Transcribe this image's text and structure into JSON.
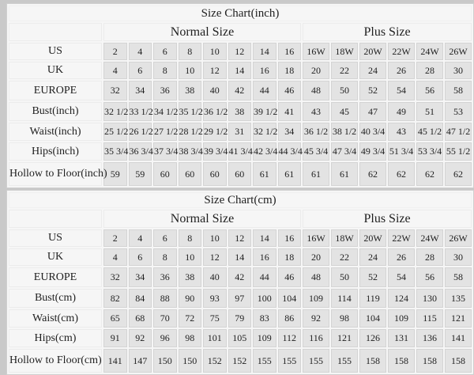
{
  "page": {
    "background": "#c9c9c9",
    "light_cell_color": "#f6f6f6",
    "data_cell_color": "#e3e3e3"
  },
  "tables": [
    {
      "title": "Size Chart(inch)",
      "normal_header": "Normal Size",
      "plus_header": "Plus Size",
      "rows": [
        {
          "label": "US",
          "values": [
            "2",
            "4",
            "6",
            "8",
            "10",
            "12",
            "14",
            "16",
            "16W",
            "18W",
            "20W",
            "22W",
            "24W",
            "26W"
          ]
        },
        {
          "label": "UK",
          "values": [
            "4",
            "6",
            "8",
            "10",
            "12",
            "14",
            "16",
            "18",
            "20",
            "22",
            "24",
            "26",
            "28",
            "30"
          ]
        },
        {
          "label": "EUROPE",
          "values": [
            "32",
            "34",
            "36",
            "38",
            "40",
            "42",
            "44",
            "46",
            "48",
            "50",
            "52",
            "54",
            "56",
            "58"
          ]
        },
        {
          "label": "Bust(inch)",
          "values": [
            "32 1/2",
            "33 1/2",
            "34 1/2",
            "35 1/2",
            "36 1/2",
            "38",
            "39 1/2",
            "41",
            "43",
            "45",
            "47",
            "49",
            "51",
            "53"
          ]
        },
        {
          "label": "Waist(inch)",
          "values": [
            "25 1/2",
            "26 1/2",
            "27 1/2",
            "28 1/2",
            "29 1/2",
            "31",
            "32 1/2",
            "34",
            "36 1/2",
            "38 1/2",
            "40 3/4",
            "43",
            "45 1/2",
            "47 1/2"
          ]
        },
        {
          "label": "Hips(inch)",
          "values": [
            "35 3/4",
            "36 3/4",
            "37 3/4",
            "38 3/4",
            "39 3/4",
            "41 3/4",
            "42 3/4",
            "44 3/4",
            "45 3/4",
            "47 3/4",
            "49 3/4",
            "51 3/4",
            "53 3/4",
            "55 1/2"
          ]
        },
        {
          "label": "Hollow to Floor(inch)",
          "values": [
            "59",
            "59",
            "60",
            "60",
            "60",
            "60",
            "61",
            "61",
            "61",
            "61",
            "62",
            "62",
            "62",
            "62"
          ]
        }
      ]
    },
    {
      "title": "Size Chart(cm)",
      "normal_header": "Normal Size",
      "plus_header": "Plus Size",
      "rows": [
        {
          "label": "US",
          "values": [
            "2",
            "4",
            "6",
            "8",
            "10",
            "12",
            "14",
            "16",
            "16W",
            "18W",
            "20W",
            "22W",
            "24W",
            "26W"
          ]
        },
        {
          "label": "UK",
          "values": [
            "4",
            "6",
            "8",
            "10",
            "12",
            "14",
            "16",
            "18",
            "20",
            "22",
            "24",
            "26",
            "28",
            "30"
          ]
        },
        {
          "label": "EUROPE",
          "values": [
            "32",
            "34",
            "36",
            "38",
            "40",
            "42",
            "44",
            "46",
            "48",
            "50",
            "52",
            "54",
            "56",
            "58"
          ]
        },
        {
          "label": "Bust(cm)",
          "values": [
            "82",
            "84",
            "88",
            "90",
            "93",
            "97",
            "100",
            "104",
            "109",
            "114",
            "119",
            "124",
            "130",
            "135"
          ]
        },
        {
          "label": "Waist(cm)",
          "values": [
            "65",
            "68",
            "70",
            "72",
            "75",
            "79",
            "83",
            "86",
            "92",
            "98",
            "104",
            "109",
            "115",
            "121"
          ]
        },
        {
          "label": "Hips(cm)",
          "values": [
            "91",
            "92",
            "96",
            "98",
            "101",
            "105",
            "109",
            "112",
            "116",
            "121",
            "126",
            "131",
            "136",
            "141"
          ]
        },
        {
          "label": "Hollow to Floor(cm)",
          "values": [
            "141",
            "147",
            "150",
            "150",
            "152",
            "152",
            "155",
            "155",
            "155",
            "155",
            "158",
            "158",
            "158",
            "158"
          ]
        }
      ]
    }
  ]
}
